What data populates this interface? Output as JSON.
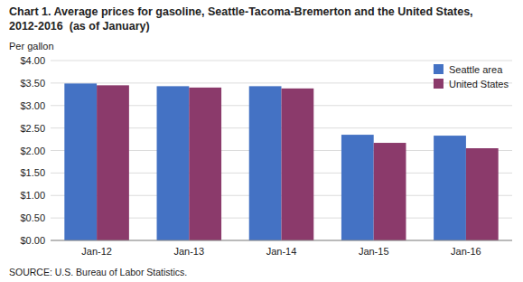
{
  "chart_data": {
    "type": "bar",
    "title": "Chart 1. Average prices for gasoline, Seattle-Tacoma-Bremerton and the United States, 2012-2016  (as of January)",
    "y_label": "Per gallon",
    "source": "SOURCE: U.S. Bureau of Labor Statistics.",
    "categories": [
      "Jan-12",
      "Jan-13",
      "Jan-14",
      "Jan-15",
      "Jan-16"
    ],
    "series": [
      {
        "name": "Seattle area",
        "color": "#4472C4",
        "values": [
          3.49,
          3.43,
          3.43,
          2.35,
          2.33
        ]
      },
      {
        "name": "United States",
        "color": "#8B3A6B",
        "values": [
          3.45,
          3.4,
          3.38,
          2.17,
          2.05
        ]
      }
    ],
    "ylim": [
      0,
      4.0
    ],
    "yticks": [
      {
        "value": 0.0,
        "label": "$0.00"
      },
      {
        "value": 0.5,
        "label": "$0.50"
      },
      {
        "value": 1.0,
        "label": "$1.00"
      },
      {
        "value": 1.5,
        "label": "$1.50"
      },
      {
        "value": 2.0,
        "label": "$2.00"
      },
      {
        "value": 2.5,
        "label": "$2.50"
      },
      {
        "value": 3.0,
        "label": "$3.00"
      },
      {
        "value": 3.5,
        "label": "$3.50"
      },
      {
        "value": 4.0,
        "label": "$4.00"
      }
    ],
    "grid": true,
    "legend": "upper right"
  }
}
